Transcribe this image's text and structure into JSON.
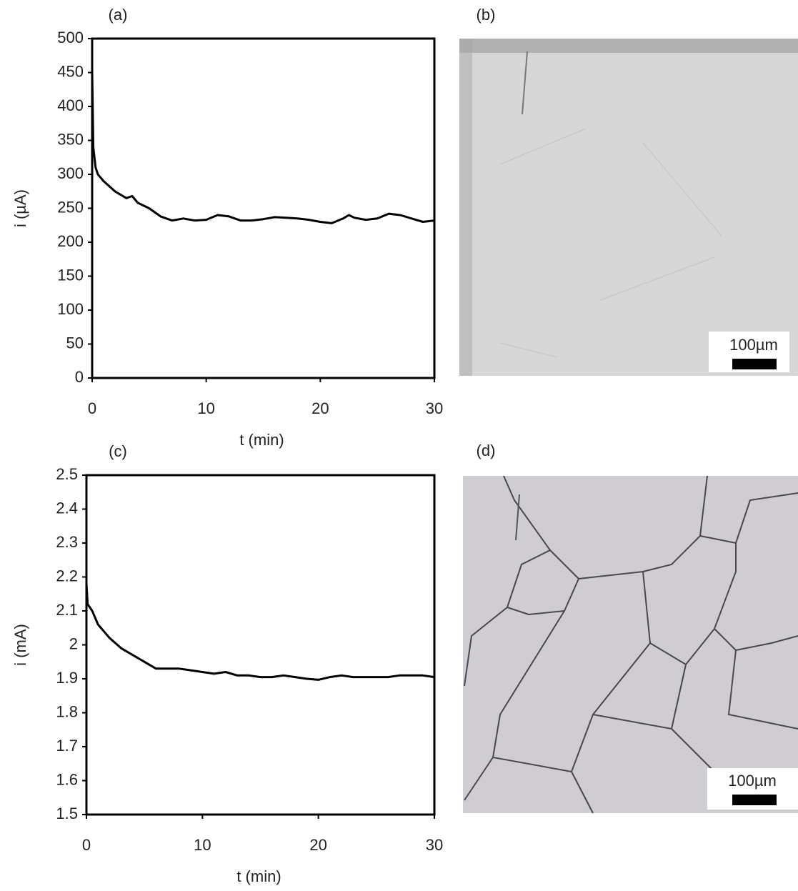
{
  "chart_data": [
    {
      "type": "line",
      "title": "(a)",
      "x_label": "t (min)",
      "y_label": "i (µA)",
      "xlim": [
        0,
        30
      ],
      "xticks": [
        0,
        10,
        20,
        30
      ],
      "ylim": [
        0,
        500
      ],
      "yticks": [
        0,
        50,
        100,
        150,
        200,
        250,
        300,
        350,
        400,
        450,
        500
      ],
      "series": [
        {
          "color": "#000000",
          "x": [
            0,
            0.1,
            0.3,
            0.5,
            1,
            2,
            3,
            3.5,
            4,
            5,
            6,
            7,
            8,
            9,
            10,
            11,
            12,
            13,
            14,
            15,
            16,
            17,
            18,
            19,
            20,
            21,
            22,
            22.5,
            23,
            24,
            25,
            26,
            27,
            28,
            29,
            30
          ],
          "values": [
            450,
            340,
            310,
            300,
            290,
            275,
            265,
            268,
            258,
            250,
            238,
            232,
            235,
            232,
            233,
            240,
            238,
            232,
            232,
            234,
            237,
            236,
            235,
            233,
            230,
            228,
            235,
            240,
            236,
            233,
            235,
            242,
            240,
            235,
            230,
            232
          ]
        }
      ]
    },
    {
      "type": "line",
      "title": "(c)",
      "x_label": "t (min)",
      "y_label": "i (mA)",
      "xlim": [
        0,
        30
      ],
      "xticks": [
        0,
        10,
        20,
        30
      ],
      "ylim": [
        1.5,
        2.5
      ],
      "yticks": [
        1.5,
        1.6,
        1.7,
        1.8,
        1.9,
        2,
        2.1,
        2.2,
        2.3,
        2.4,
        2.5
      ],
      "series": [
        {
          "color": "#000000",
          "x": [
            0,
            0.1,
            0.5,
            1,
            2,
            3,
            4,
            5,
            6,
            7,
            8,
            9,
            10,
            11,
            12,
            13,
            14,
            15,
            16,
            17,
            18,
            19,
            20,
            21,
            22,
            23,
            24,
            25,
            26,
            27,
            28,
            29,
            30
          ],
          "values": [
            2.18,
            2.12,
            2.1,
            2.06,
            2.02,
            1.99,
            1.97,
            1.95,
            1.93,
            1.93,
            1.93,
            1.925,
            1.92,
            1.915,
            1.92,
            1.91,
            1.91,
            1.905,
            1.905,
            1.91,
            1.905,
            1.9,
            1.897,
            1.905,
            1.91,
            1.905,
            1.905,
            1.905,
            1.905,
            1.91,
            1.91,
            1.91,
            1.905
          ]
        }
      ]
    }
  ],
  "panels": [
    {
      "label": "(b)",
      "scale_bar": "100µm"
    },
    {
      "label": "(d)",
      "scale_bar": "100µm"
    }
  ]
}
